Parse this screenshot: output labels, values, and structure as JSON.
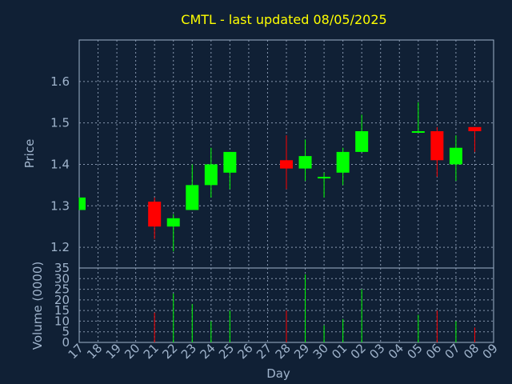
{
  "colors": {
    "background": "#102035",
    "foreground": "#a0b4cc",
    "title": "#ffff00",
    "up": "#00ff00",
    "down": "#ff0000",
    "grid": "#8898b0"
  },
  "chart_data": [
    {
      "type": "candlestick",
      "title": "CMTL - last updated 08/05/2025",
      "ylabel": "Price",
      "ylim": [
        1.15,
        1.7
      ],
      "yticks": [
        "1.2",
        "1.3",
        "1.4",
        "1.5",
        "1.6"
      ],
      "ytick_values": [
        1.2,
        1.3,
        1.4,
        1.5,
        1.6
      ],
      "grid": true,
      "candles": [
        {
          "day": "17",
          "open": 1.29,
          "high": 1.32,
          "low": 1.29,
          "close": 1.32
        },
        {
          "day": "21",
          "open": 1.31,
          "high": 1.32,
          "low": 1.22,
          "close": 1.25
        },
        {
          "day": "22",
          "open": 1.25,
          "high": 1.28,
          "low": 1.19,
          "close": 1.27
        },
        {
          "day": "23",
          "open": 1.29,
          "high": 1.4,
          "low": 1.29,
          "close": 1.35
        },
        {
          "day": "24",
          "open": 1.35,
          "high": 1.44,
          "low": 1.32,
          "close": 1.4
        },
        {
          "day": "25",
          "open": 1.38,
          "high": 1.43,
          "low": 1.34,
          "close": 1.43
        },
        {
          "day": "28",
          "open": 1.41,
          "high": 1.47,
          "low": 1.34,
          "close": 1.39
        },
        {
          "day": "29",
          "open": 1.39,
          "high": 1.46,
          "low": 1.36,
          "close": 1.42
        },
        {
          "day": "30",
          "open": 1.37,
          "high": 1.38,
          "low": 1.32,
          "close": 1.37
        },
        {
          "day": "01",
          "open": 1.38,
          "high": 1.44,
          "low": 1.35,
          "close": 1.43
        },
        {
          "day": "02",
          "open": 1.43,
          "high": 1.52,
          "low": 1.43,
          "close": 1.48
        },
        {
          "day": "05",
          "open": 1.48,
          "high": 1.55,
          "low": 1.48,
          "close": 1.48
        },
        {
          "day": "06",
          "open": 1.48,
          "high": 1.49,
          "low": 1.37,
          "close": 1.41
        },
        {
          "day": "07",
          "open": 1.4,
          "high": 1.47,
          "low": 1.36,
          "close": 1.44
        },
        {
          "day": "08",
          "open": 1.49,
          "high": 1.49,
          "low": 1.43,
          "close": 1.48
        }
      ]
    },
    {
      "type": "bar",
      "ylabel": "Volume (0000)",
      "xlabel": "Day",
      "ylim": [
        0,
        35
      ],
      "yticks": [
        "0",
        "5",
        "10",
        "15",
        "20",
        "25",
        "30",
        "35"
      ],
      "ytick_values": [
        0,
        5,
        10,
        15,
        20,
        25,
        30,
        35
      ],
      "categories": [
        "17",
        "18",
        "19",
        "20",
        "21",
        "22",
        "23",
        "24",
        "25",
        "26",
        "27",
        "28",
        "29",
        "30",
        "01",
        "02",
        "03",
        "04",
        "05",
        "06",
        "07",
        "08",
        "09"
      ],
      "values": [
        {
          "day": "21",
          "volume": 14,
          "direction": "down"
        },
        {
          "day": "22",
          "volume": 23,
          "direction": "up"
        },
        {
          "day": "23",
          "volume": 18,
          "direction": "up"
        },
        {
          "day": "24",
          "volume": 10,
          "direction": "up"
        },
        {
          "day": "25",
          "volume": 15,
          "direction": "up"
        },
        {
          "day": "28",
          "volume": 15,
          "direction": "down"
        },
        {
          "day": "29",
          "volume": 32,
          "direction": "up"
        },
        {
          "day": "30",
          "volume": 8,
          "direction": "up"
        },
        {
          "day": "01",
          "volume": 11,
          "direction": "up"
        },
        {
          "day": "02",
          "volume": 25,
          "direction": "up"
        },
        {
          "day": "05",
          "volume": 13,
          "direction": "up"
        },
        {
          "day": "06",
          "volume": 15,
          "direction": "down"
        },
        {
          "day": "07",
          "volume": 10,
          "direction": "up"
        },
        {
          "day": "08",
          "volume": 7,
          "direction": "down"
        }
      ]
    }
  ]
}
